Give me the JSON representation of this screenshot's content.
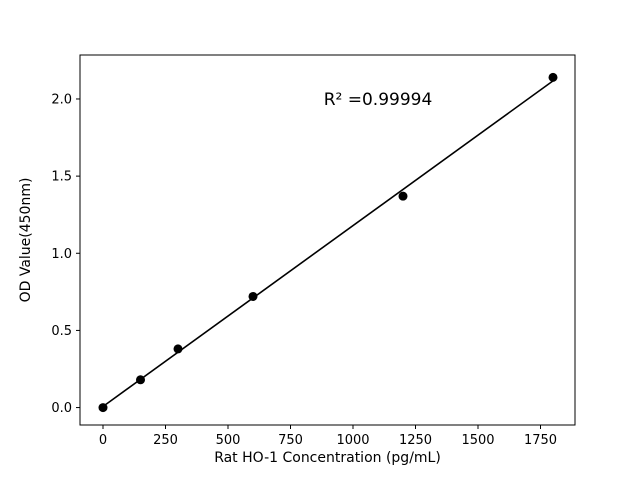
{
  "figure": {
    "background": "#ffffff",
    "foreground": "#000000"
  },
  "chart_data": {
    "type": "scatter",
    "title": "",
    "xlabel": "Rat HO-1 Concentration (pg/mL)",
    "ylabel": "OD Value(450nm)",
    "x": [
      0,
      150,
      300,
      600,
      1200,
      1800
    ],
    "y": [
      0.0,
      0.18,
      0.38,
      0.72,
      1.37,
      2.14
    ],
    "fit_line": true,
    "annotation": {
      "text": "R² =0.99994",
      "x": 1100,
      "y": 2.0
    },
    "xticks": [
      "0",
      "250",
      "500",
      "750",
      "1000",
      "1250",
      "1500",
      "1750"
    ],
    "yticks": [
      "0.0",
      "0.5",
      "1.0",
      "1.5",
      "2.0"
    ],
    "xlim": [
      -92,
      1888
    ],
    "ylim": [
      -0.113,
      2.285
    ],
    "marker_color": "#000000",
    "line_color": "#000000",
    "legend": null,
    "grid": false
  }
}
